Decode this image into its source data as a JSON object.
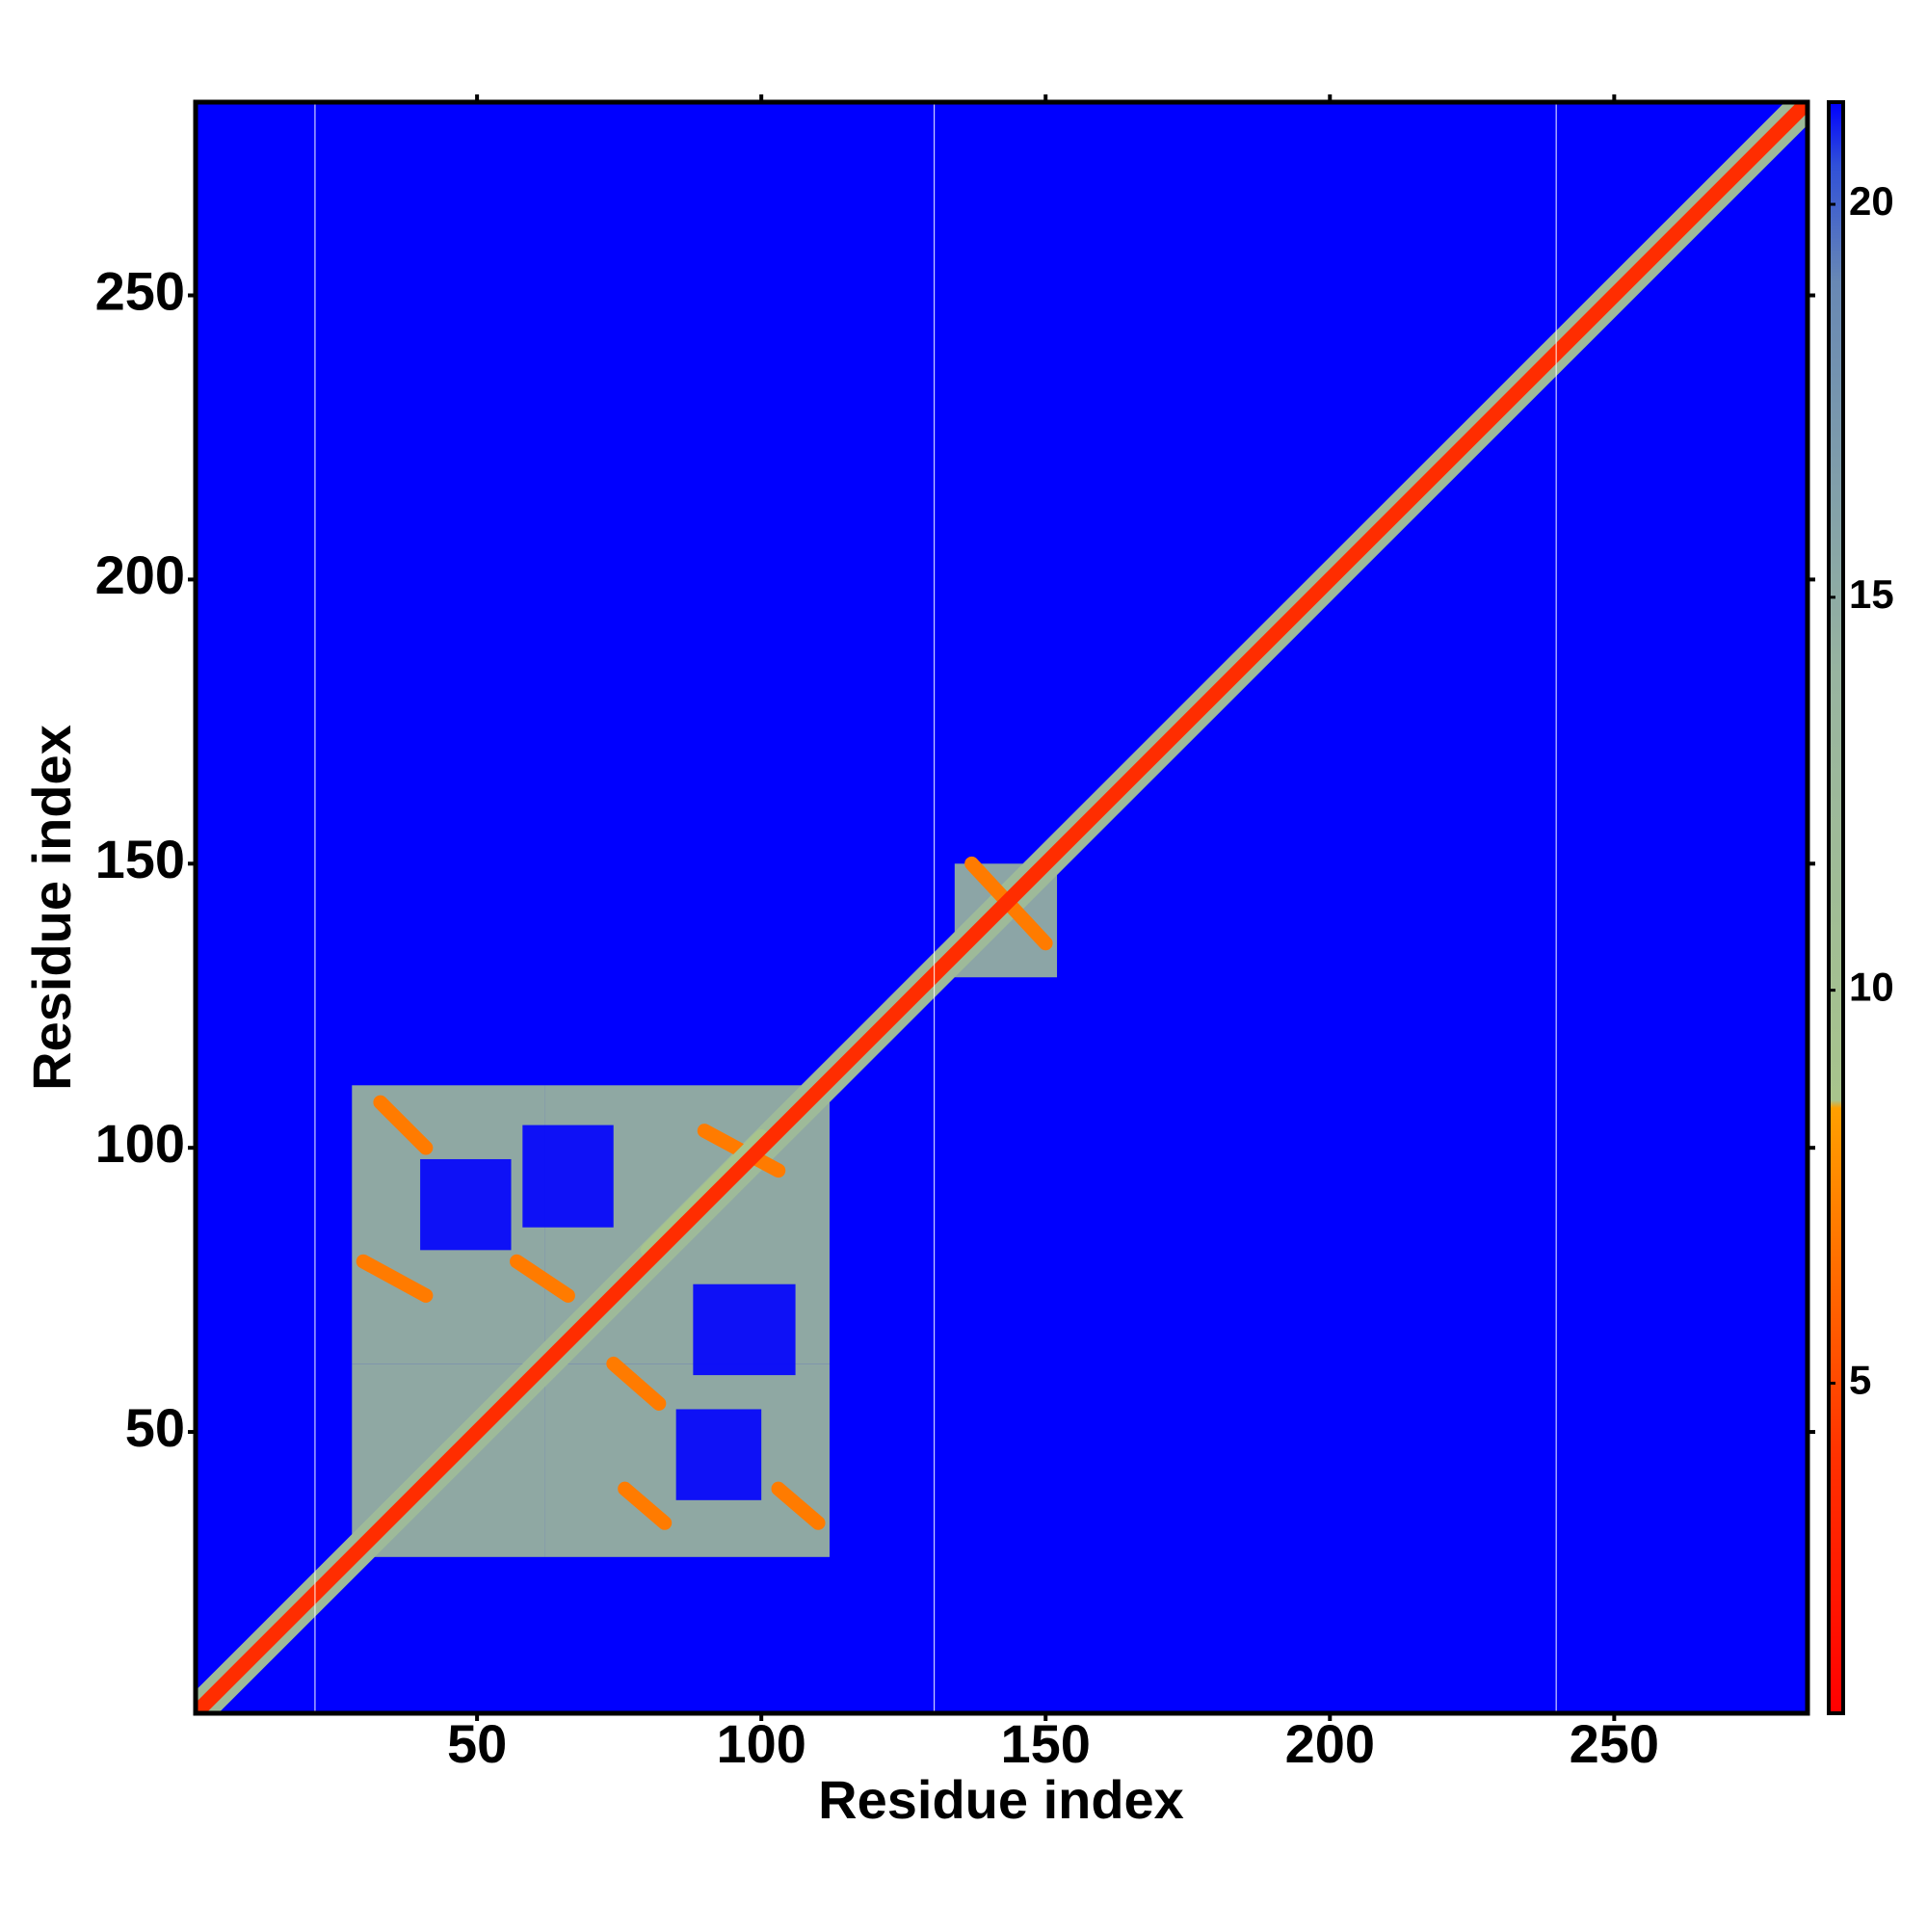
{
  "chart_data": {
    "type": "heatmap",
    "x_label": "Residue index",
    "y_label": "Residue index",
    "xlim": [
      0.5,
      284
    ],
    "ylim": [
      0.5,
      284
    ],
    "xticks": [
      50,
      100,
      150,
      200,
      250
    ],
    "yticks": [
      50,
      100,
      150,
      200,
      250
    ],
    "clim": [
      0.8,
      21.3
    ],
    "cticks": [
      5,
      10,
      15,
      20
    ],
    "colorscale": [
      [
        0.8,
        "#ff0000"
      ],
      [
        4,
        "#ff3000"
      ],
      [
        8.5,
        "#ffa000"
      ],
      [
        8.6,
        "#a8c48c"
      ],
      [
        14,
        "#98b4a0"
      ],
      [
        19,
        "#6888b4"
      ],
      [
        20.5,
        "#3050d8"
      ],
      [
        21.3,
        "#0000ff"
      ]
    ],
    "background_value": 21.3,
    "diagonal": {
      "value": 3.8,
      "band_value": 12,
      "band_width": 4
    },
    "patches": [
      {
        "x": [
          28,
          62
        ],
        "y": [
          28,
          62
        ],
        "value": 12
      },
      {
        "x": [
          28,
          62
        ],
        "y": [
          62,
          111
        ],
        "value": 12
      },
      {
        "x": [
          62,
          112
        ],
        "y": [
          28,
          62
        ],
        "value": 12
      },
      {
        "x": [
          62,
          112
        ],
        "y": [
          62,
          111
        ],
        "value": 12
      },
      {
        "x": [
          40,
          56
        ],
        "y": [
          82,
          98
        ],
        "value": 21.3
      },
      {
        "x": [
          85,
          100
        ],
        "y": [
          38,
          54
        ],
        "value": 21.3
      },
      {
        "x": [
          58,
          74
        ],
        "y": [
          86,
          104
        ],
        "value": 21.3
      },
      {
        "x": [
          88,
          106
        ],
        "y": [
          60,
          76
        ],
        "value": 21.3
      },
      {
        "x": [
          134,
          152
        ],
        "y": [
          130,
          150
        ],
        "value": 13
      }
    ],
    "segments": [
      {
        "x": [
          33,
          41
        ],
        "y": [
          108,
          100
        ],
        "value": 7
      },
      {
        "x": [
          30,
          41
        ],
        "y": [
          80,
          74
        ],
        "value": 7
      },
      {
        "x": [
          57,
          66
        ],
        "y": [
          80,
          74
        ],
        "value": 7
      },
      {
        "x": [
          74,
          82
        ],
        "y": [
          62,
          55
        ],
        "value": 7
      },
      {
        "x": [
          76,
          83
        ],
        "y": [
          40,
          34
        ],
        "value": 7
      },
      {
        "x": [
          103,
          110
        ],
        "y": [
          40,
          34
        ],
        "value": 7
      },
      {
        "x": [
          90,
          103
        ],
        "y": [
          103,
          96
        ],
        "value": 7
      },
      {
        "x": [
          137,
          150
        ],
        "y": [
          150,
          136
        ],
        "value": 7
      },
      {
        "x": [
          80,
          100
        ],
        "y": [
          82,
          102
        ],
        "value": 9
      }
    ],
    "vlines": [
      21.5,
      130.4,
      239.8
    ]
  }
}
